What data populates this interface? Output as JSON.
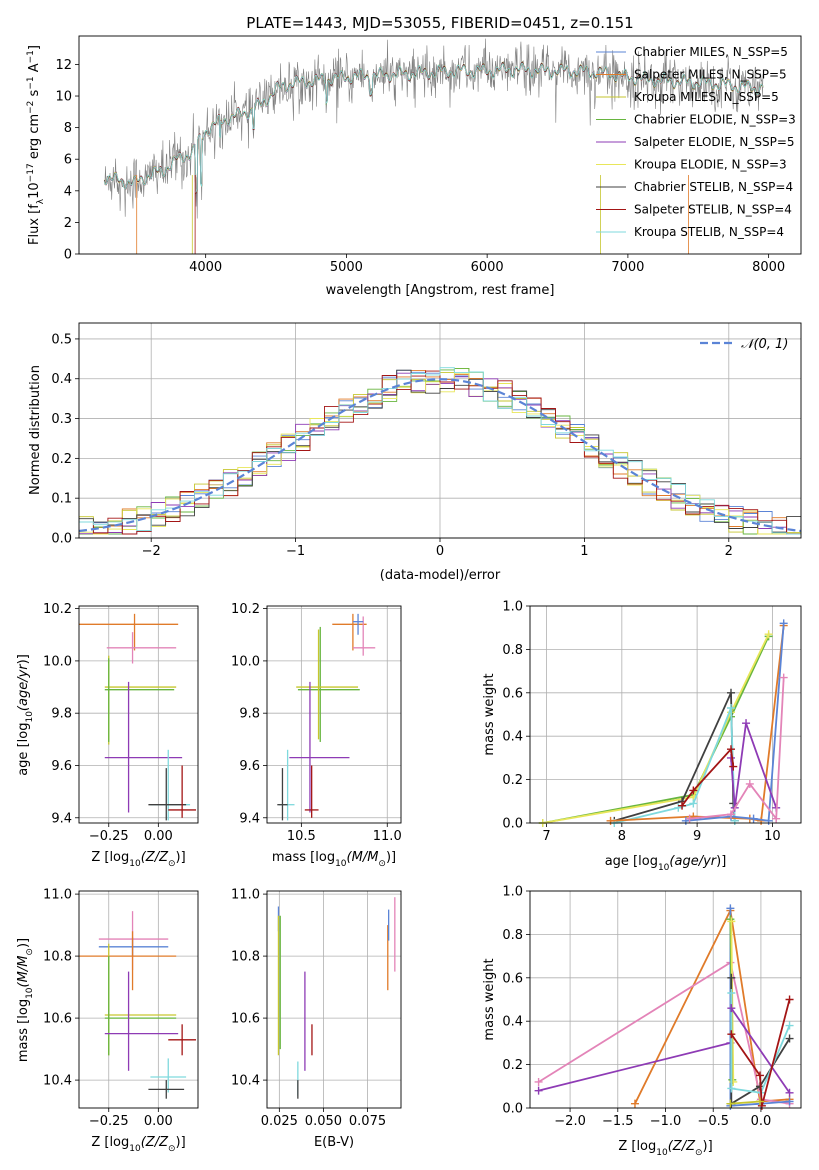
{
  "colors": {
    "chabrier_miles": "#5b84d6",
    "salpeter_miles": "#e07b2a",
    "kroupa_miles": "#c6c62f",
    "chabrier_elodie": "#67b53f",
    "salpeter_elodie": "#8e3bb5",
    "kroupa_elodie": "#e8e65a",
    "chabrier_stelib": "#404040",
    "salpeter_stelib": "#a31515",
    "kroupa_stelib": "#7fd9dd",
    "pink": "#e384b8",
    "data": "#808080",
    "gaussian": "#5b84d6"
  },
  "chart_data": [
    {
      "type": "line",
      "title": "PLATE=1443, MJD=53055, FIBERID=0451, z=0.151",
      "xlabel": "wavelength [Angstrom, rest frame]",
      "ylabel": "Flux [f_λ 10^-17 erg cm^-2 s^-1 A^-1]",
      "xlim": [
        3100,
        8230
      ],
      "ylim": [
        0,
        13.8
      ],
      "xticks": [
        "4000",
        "5000",
        "6000",
        "7000",
        "8000"
      ],
      "yticks": [
        "0",
        "2",
        "4",
        "6",
        "8",
        "10",
        "12"
      ],
      "legend_position": "top-right",
      "legend": [
        "Chabrier MILES, N_SSP=5",
        "Salpeter MILES, N_SSP=5",
        "Kroupa MILES, N_SSP=5",
        "Chabrier ELODIE, N_SSP=3",
        "Salpeter ELODIE, N_SSP=5",
        "Kroupa ELODIE, N_SSP=3",
        "Chabrier STELIB, N_SSP=4",
        "Salpeter STELIB, N_SSP=4",
        "Kroupa STELIB, N_SSP=4"
      ],
      "continuum": {
        "x": [
          3280,
          3400,
          3500,
          3600,
          3700,
          3800,
          3900,
          4000,
          4100,
          4200,
          4300,
          4400,
          4500,
          4600,
          4800,
          5000,
          5200,
          5400,
          5600,
          5800,
          6000,
          6200,
          6400,
          6600,
          6800,
          7000,
          7200,
          7400,
          7600,
          7800,
          7960
        ],
        "y": [
          4.9,
          4.6,
          4.5,
          5.0,
          5.3,
          6.0,
          6.4,
          7.8,
          8.4,
          8.7,
          9.0,
          9.5,
          10.4,
          10.8,
          11.0,
          11.2,
          11.3,
          11.4,
          11.5,
          11.6,
          11.6,
          11.7,
          11.6,
          11.6,
          11.5,
          11.2,
          11.0,
          10.9,
          10.8,
          10.6,
          10.5
        ]
      }
    },
    {
      "type": "line",
      "xlabel": "(data-model)/error",
      "ylabel": "Normed distribution",
      "xlim": [
        -2.5,
        2.5
      ],
      "ylim": [
        0,
        0.54
      ],
      "xticks": [
        "−2",
        "−1",
        "0",
        "1",
        "2"
      ],
      "yticks": [
        "0.0",
        "0.1",
        "0.2",
        "0.3",
        "0.4",
        "0.5"
      ],
      "grid": true,
      "legend_position": "top-right",
      "legend": [
        "𝒩(0, 1)"
      ],
      "gaussian": {
        "mu": 0,
        "sigma": 1
      }
    },
    {
      "type": "scatter",
      "xlabel": "Z [log10(Z/Z☉)]",
      "ylabel": "age  [log10(age/yr)]",
      "xlim": [
        -0.4,
        0.2
      ],
      "ylim": [
        9.38,
        10.21
      ],
      "xticks": [
        "−0.25",
        "0.00"
      ],
      "yticks": [
        "9.4",
        "9.6",
        "9.8",
        "10.0",
        "10.2"
      ],
      "points": [
        {
          "s": "salpeter_miles",
          "x": -0.12,
          "xe": [
            0.28,
            0.22
          ],
          "y": 10.14,
          "ye": [
            0.1,
            0.04
          ]
        },
        {
          "s": "pink",
          "x": -0.13,
          "xe": [
            0.13,
            0.22
          ],
          "y": 10.05,
          "ye": [
            0.06,
            0.06
          ]
        },
        {
          "s": "kroupa_miles",
          "x": -0.25,
          "xe": [
            0.02,
            0.34
          ],
          "y": 9.9,
          "ye": [
            0.22,
            0.12
          ]
        },
        {
          "s": "chabrier_elodie",
          "x": -0.25,
          "xe": [
            0.02,
            0.33
          ],
          "y": 9.89,
          "ye": [
            0.2,
            0.12
          ]
        },
        {
          "s": "salpeter_elodie",
          "x": -0.15,
          "xe": [
            0.12,
            0.27
          ],
          "y": 9.63,
          "ye": [
            0.21,
            0.29
          ]
        },
        {
          "s": "kroupa_stelib",
          "x": 0.05,
          "xe": [
            0.09,
            0.11
          ],
          "y": 9.45,
          "ye": [
            0.06,
            0.21
          ]
        },
        {
          "s": "chabrier_stelib",
          "x": 0.04,
          "xe": [
            0.09,
            0.1
          ],
          "y": 9.45,
          "ye": [
            0.06,
            0.14
          ]
        },
        {
          "s": "salpeter_stelib",
          "x": 0.12,
          "xe": [
            0.07,
            0.07
          ],
          "y": 9.43,
          "ye": [
            0.03,
            0.17
          ]
        }
      ]
    },
    {
      "type": "scatter",
      "xlabel": "mass [log10(M/M☉)]",
      "ylabel": "",
      "xlim": [
        10.3,
        11.08
      ],
      "ylim": [
        9.38,
        10.21
      ],
      "xticks": [
        "10.5",
        "11.0"
      ],
      "yticks": [
        "9.4",
        "9.6",
        "9.8",
        "10.0",
        "10.2"
      ],
      "points": [
        {
          "s": "salpeter_miles",
          "x": 10.8,
          "xe": [
            0.12,
            0.08
          ],
          "y": 10.14,
          "ye": [
            0.1,
            0.04
          ]
        },
        {
          "s": "pink",
          "x": 10.86,
          "xe": [
            0.06,
            0.07
          ],
          "y": 10.05,
          "ye": [
            0.03,
            0.12
          ]
        },
        {
          "s": "chabrier_miles",
          "x": 10.83,
          "xe": [
            0.03,
            0.03
          ],
          "y": 10.15,
          "ye": [
            0.05,
            0.03
          ]
        },
        {
          "s": "chabrier_elodie",
          "x": 10.61,
          "xe": [
            0.13,
            0.23
          ],
          "y": 9.89,
          "ye": [
            0.2,
            0.24
          ]
        },
        {
          "s": "kroupa_miles",
          "x": 10.6,
          "xe": [
            0.13,
            0.23
          ],
          "y": 9.9,
          "ye": [
            0.2,
            0.22
          ]
        },
        {
          "s": "salpeter_elodie",
          "x": 10.55,
          "xe": [
            0.12,
            0.23
          ],
          "y": 9.63,
          "ye": [
            0.21,
            0.29
          ]
        },
        {
          "s": "kroupa_stelib",
          "x": 10.42,
          "xe": [
            0.05,
            0.04
          ],
          "y": 9.45,
          "ye": [
            0.06,
            0.21
          ]
        },
        {
          "s": "chabrier_stelib",
          "x": 10.39,
          "xe": [
            0.03,
            0.03
          ],
          "y": 9.45,
          "ye": [
            0.06,
            0.14
          ]
        },
        {
          "s": "salpeter_stelib",
          "x": 10.56,
          "xe": [
            0.04,
            0.04
          ],
          "y": 9.43,
          "ye": [
            0.03,
            0.17
          ]
        }
      ]
    },
    {
      "type": "line",
      "xlabel": "age  [log10(age/yr)]",
      "ylabel": "mass weight",
      "xlim": [
        6.78,
        10.38
      ],
      "ylim": [
        0,
        1
      ],
      "xticks": [
        "7",
        "8",
        "9",
        "10"
      ],
      "yticks": [
        "0.0",
        "0.2",
        "0.4",
        "0.6",
        "0.8",
        "1.0"
      ],
      "grid": true,
      "series": [
        {
          "s": "chabrier_elodie",
          "x": [
            6.95,
            8.95,
            9.45,
            9.95
          ],
          "y": [
            0.0,
            0.13,
            0.49,
            0.86
          ]
        },
        {
          "s": "kroupa_elodie",
          "x": [
            6.95,
            8.95,
            9.45,
            9.95
          ],
          "y": [
            0.0,
            0.12,
            0.51,
            0.87
          ]
        },
        {
          "s": "chabrier_stelib",
          "x": [
            7.9,
            8.8,
            9.45,
            9.48,
            9.5
          ],
          "y": [
            0.01,
            0.1,
            0.6,
            0.09,
            0.01
          ]
        },
        {
          "s": "kroupa_stelib",
          "x": [
            7.9,
            8.75,
            8.95,
            9.45,
            9.5
          ],
          "y": [
            0.0,
            0.07,
            0.09,
            0.53,
            0.01
          ]
        },
        {
          "s": "salpeter_miles",
          "x": [
            7.85,
            8.95,
            9.7,
            9.85,
            10.15
          ],
          "y": [
            0.01,
            0.03,
            0.02,
            0.01,
            0.91
          ]
        },
        {
          "s": "chabrier_miles",
          "x": [
            8.85,
            9.45,
            9.75,
            9.95,
            10.15
          ],
          "y": [
            0.01,
            0.03,
            0.02,
            0.01,
            0.92
          ]
        },
        {
          "s": "salpeter_elodie",
          "x": [
            9.45,
            9.5,
            9.65,
            10.05
          ],
          "y": [
            0.3,
            0.07,
            0.46,
            0.07
          ]
        },
        {
          "s": "salpeter_stelib",
          "x": [
            8.8,
            8.95,
            9.45,
            9.48
          ],
          "y": [
            0.08,
            0.15,
            0.34,
            0.26
          ]
        },
        {
          "s": "pink",
          "x": [
            8.9,
            9.45,
            9.7,
            10.05,
            10.15
          ],
          "y": [
            0.02,
            0.04,
            0.18,
            0.02,
            0.67
          ]
        }
      ]
    },
    {
      "type": "scatter",
      "xlabel": "Z [log10(Z/Z☉)]",
      "ylabel": "mass [log10(M/M☉)]",
      "xlim": [
        -0.4,
        0.2
      ],
      "ylim": [
        10.31,
        11.01
      ],
      "xticks": [
        "−0.25",
        "0.00"
      ],
      "yticks": [
        "10.4",
        "10.6",
        "10.8",
        "11.0"
      ],
      "points": [
        {
          "s": "pink",
          "x": -0.13,
          "xe": [
            0.17,
            0.18
          ],
          "y": 10.855,
          "ye": [
            0.1,
            0.09
          ]
        },
        {
          "s": "chabrier_miles",
          "x": -0.13,
          "xe": [
            0.17,
            0.18
          ],
          "y": 10.83,
          "ye": [
            0.03,
            0.03
          ]
        },
        {
          "s": "salpeter_miles",
          "x": -0.13,
          "xe": [
            0.28,
            0.22
          ],
          "y": 10.8,
          "ye": [
            0.11,
            0.08
          ]
        },
        {
          "s": "kroupa_miles",
          "x": -0.25,
          "xe": [
            0.02,
            0.34
          ],
          "y": 10.61,
          "ye": [
            0.13,
            0.23
          ]
        },
        {
          "s": "chabrier_elodie",
          "x": -0.25,
          "xe": [
            0.02,
            0.34
          ],
          "y": 10.6,
          "ye": [
            0.12,
            0.2
          ]
        },
        {
          "s": "salpeter_elodie",
          "x": -0.15,
          "xe": [
            0.12,
            0.25
          ],
          "y": 10.55,
          "ye": [
            0.12,
            0.2
          ]
        },
        {
          "s": "salpeter_stelib",
          "x": 0.12,
          "xe": [
            0.07,
            0.07
          ],
          "y": 10.53,
          "ye": [
            0.05,
            0.05
          ]
        },
        {
          "s": "kroupa_stelib",
          "x": 0.05,
          "xe": [
            0.09,
            0.09
          ],
          "y": 10.41,
          "ye": [
            0.05,
            0.06
          ]
        },
        {
          "s": "chabrier_stelib",
          "x": 0.04,
          "xe": [
            0.09,
            0.09
          ],
          "y": 10.37,
          "ye": [
            0.03,
            0.03
          ]
        }
      ]
    },
    {
      "type": "scatter",
      "xlabel": "E(B-V)",
      "ylabel": "",
      "xlim": [
        0.018,
        0.094
      ],
      "ylim": [
        10.31,
        11.01
      ],
      "xticks": [
        "0.025",
        "0.050",
        "0.075"
      ],
      "yticks": [
        "10.4",
        "10.6",
        "10.8",
        "11.0"
      ],
      "points": [
        {
          "s": "chabrier_miles",
          "x": 0.0245,
          "xe": [
            0,
            0
          ],
          "y": 10.9,
          "ye": [
            0.02,
            0.06
          ]
        },
        {
          "s": "kroupa_miles",
          "x": 0.0245,
          "xe": [
            0,
            0
          ],
          "y": 10.7,
          "ye": [
            0.22,
            0.23
          ]
        },
        {
          "s": "chabrier_elodie",
          "x": 0.0255,
          "xe": [
            0,
            0
          ],
          "y": 10.7,
          "ye": [
            0.2,
            0.23
          ]
        },
        {
          "s": "kroupa_stelib",
          "x": 0.0355,
          "xe": [
            0,
            0
          ],
          "y": 10.4,
          "ye": [
            0.05,
            0.06
          ]
        },
        {
          "s": "chabrier_stelib",
          "x": 0.0355,
          "xe": [
            0,
            0
          ],
          "y": 10.37,
          "ye": [
            0.03,
            0.03
          ]
        },
        {
          "s": "salpeter_elodie",
          "x": 0.0395,
          "xe": [
            0,
            0
          ],
          "y": 10.55,
          "ye": [
            0.12,
            0.2
          ]
        },
        {
          "s": "salpeter_stelib",
          "x": 0.0435,
          "xe": [
            0,
            0
          ],
          "y": 10.53,
          "ye": [
            0.05,
            0.05
          ]
        },
        {
          "s": "salpeter_miles",
          "x": 0.0865,
          "xe": [
            0,
            0
          ],
          "y": 10.8,
          "ye": [
            0.11,
            0.1
          ]
        },
        {
          "s": "chabrier_miles",
          "x": 0.087,
          "xe": [
            0,
            0
          ],
          "y": 10.88,
          "ye": [
            0.03,
            0.07
          ]
        },
        {
          "s": "pink",
          "x": 0.0905,
          "xe": [
            0,
            0
          ],
          "y": 10.87,
          "ye": [
            0.12,
            0.12
          ]
        }
      ]
    },
    {
      "type": "line",
      "xlabel": "Z [log10(Z/Z☉)]",
      "ylabel": "mass weight",
      "xlim": [
        -2.42,
        0.42
      ],
      "ylim": [
        0,
        1
      ],
      "xticks": [
        "−2.0",
        "−1.5",
        "−1.0",
        "−0.5",
        "0.0"
      ],
      "yticks": [
        "0.0",
        "0.2",
        "0.4",
        "0.6",
        "0.8",
        "1.0"
      ],
      "grid": true,
      "series": [
        {
          "s": "salpeter_miles",
          "x": [
            -1.32,
            -0.32,
            -0.01,
            0.3
          ],
          "y": [
            0.02,
            0.91,
            0.03,
            0.04
          ]
        },
        {
          "s": "pink",
          "x": [
            -2.33,
            -0.32,
            0.0,
            0.3
          ],
          "y": [
            0.12,
            0.67,
            0.04,
            0.02
          ]
        },
        {
          "s": "salpeter_elodie",
          "x": [
            -2.33,
            -0.32
          ],
          "y": [
            0.08,
            0.3
          ]
        },
        {
          "s": "chabrier_miles",
          "x": [
            -0.32,
            -0.32,
            0.0,
            0.3
          ],
          "y": [
            0.92,
            0.01,
            0.02,
            0.03
          ]
        },
        {
          "s": "chabrier_elodie",
          "x": [
            -0.32,
            -0.3
          ],
          "y": [
            0.87,
            0.13
          ]
        },
        {
          "s": "kroupa_elodie",
          "x": [
            -0.31,
            -0.29
          ],
          "y": [
            0.86,
            0.12
          ]
        },
        {
          "s": "chabrier_stelib",
          "x": [
            -0.31,
            -0.31,
            -0.01,
            0.3
          ],
          "y": [
            0.6,
            0.02,
            0.1,
            0.32
          ]
        },
        {
          "s": "kroupa_stelib",
          "x": [
            -0.31,
            -0.31,
            0.0,
            0.3
          ],
          "y": [
            0.53,
            0.09,
            0.07,
            0.38
          ]
        },
        {
          "s": "salpeter_elodie",
          "x": [
            -0.31,
            0.3
          ],
          "y": [
            0.46,
            0.07
          ]
        },
        {
          "s": "salpeter_stelib",
          "x": [
            -0.31,
            -0.01,
            0.01,
            0.3
          ],
          "y": [
            0.34,
            0.15,
            0.01,
            0.5
          ]
        },
        {
          "s": "kroupa_miles",
          "x": [
            -0.32,
            -0.01
          ],
          "y": [
            0.02,
            0.03
          ]
        }
      ]
    }
  ]
}
